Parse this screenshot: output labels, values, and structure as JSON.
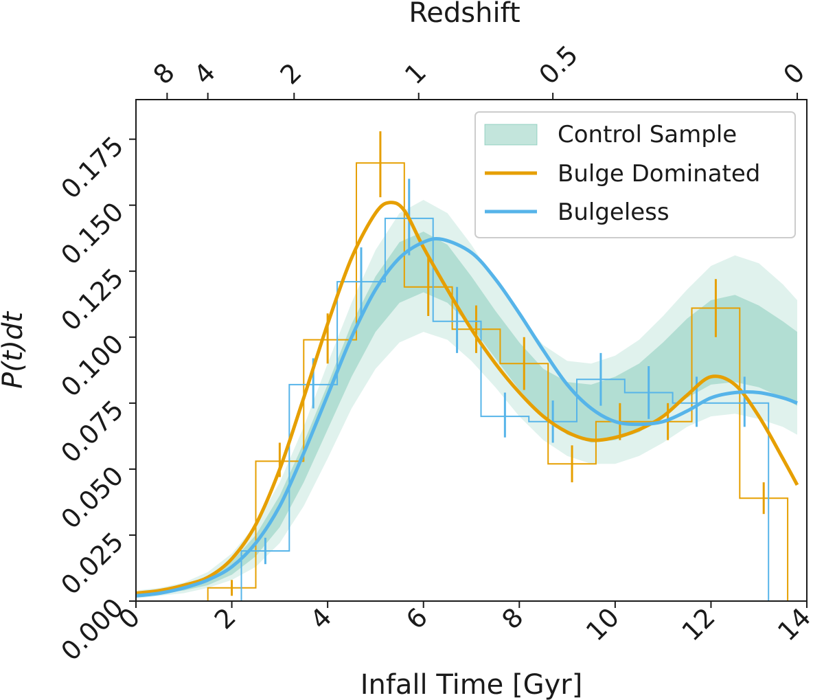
{
  "chart_data": {
    "type": "line",
    "xlabel": "Infall Time [Gyr]",
    "ylabel": "P(t)dt",
    "top_xlabel": "Redshift",
    "xlim": [
      0,
      14
    ],
    "ylim": [
      0,
      0.19
    ],
    "xticks": [
      0,
      2,
      4,
      6,
      8,
      10,
      12,
      14
    ],
    "xtick_labels": [
      "0",
      "2",
      "4",
      "6",
      "8",
      "10",
      "12",
      "14"
    ],
    "yticks": [
      0,
      0.025,
      0.05,
      0.075,
      0.1,
      0.125,
      0.15,
      0.175
    ],
    "ytick_labels": [
      "0.000",
      "0.025",
      "0.050",
      "0.075",
      "0.100",
      "0.125",
      "0.150",
      "0.175"
    ],
    "top_ticks": [
      {
        "label": "8",
        "t": 0.65
      },
      {
        "label": "4",
        "t": 1.5
      },
      {
        "label": "2",
        "t": 3.3
      },
      {
        "label": "1",
        "t": 5.9
      },
      {
        "label": "0.5",
        "t": 8.7
      },
      {
        "label": "0",
        "t": 13.8
      }
    ],
    "legend_position": "upper right",
    "colors": {
      "control": "#52b59a",
      "bulge": "#e69f00",
      "bulgeless": "#56b4e9"
    },
    "series": [
      {
        "name": "Control Sample",
        "kind": "band",
        "x": [
          0,
          0.5,
          1,
          1.5,
          2,
          2.5,
          3,
          3.5,
          4,
          4.5,
          5,
          5.5,
          6,
          6.5,
          7,
          7.5,
          8,
          8.5,
          9,
          9.5,
          10,
          10.5,
          11,
          11.5,
          12,
          12.5,
          13,
          13.5,
          13.8
        ],
        "inner_upper": [
          0.003,
          0.004,
          0.005,
          0.009,
          0.015,
          0.025,
          0.04,
          0.06,
          0.082,
          0.105,
          0.123,
          0.136,
          0.14,
          0.135,
          0.123,
          0.11,
          0.098,
          0.088,
          0.083,
          0.082,
          0.085,
          0.09,
          0.098,
          0.107,
          0.114,
          0.116,
          0.112,
          0.106,
          0.102
        ],
        "inner_lower": [
          0.002,
          0.003,
          0.004,
          0.006,
          0.01,
          0.017,
          0.028,
          0.045,
          0.065,
          0.085,
          0.102,
          0.113,
          0.117,
          0.113,
          0.104,
          0.092,
          0.08,
          0.07,
          0.063,
          0.06,
          0.061,
          0.064,
          0.07,
          0.077,
          0.082,
          0.083,
          0.081,
          0.077,
          0.074
        ],
        "outer_upper": [
          0.004,
          0.005,
          0.007,
          0.011,
          0.018,
          0.029,
          0.045,
          0.066,
          0.09,
          0.113,
          0.133,
          0.147,
          0.152,
          0.147,
          0.135,
          0.121,
          0.108,
          0.097,
          0.091,
          0.09,
          0.093,
          0.099,
          0.108,
          0.118,
          0.127,
          0.131,
          0.128,
          0.12,
          0.114
        ],
        "outer_lower": [
          0.001,
          0.002,
          0.003,
          0.005,
          0.008,
          0.013,
          0.022,
          0.036,
          0.054,
          0.073,
          0.088,
          0.098,
          0.102,
          0.099,
          0.091,
          0.081,
          0.07,
          0.061,
          0.055,
          0.052,
          0.052,
          0.055,
          0.06,
          0.066,
          0.07,
          0.071,
          0.069,
          0.066,
          0.063
        ]
      },
      {
        "name": "Bulge Dominated",
        "kind": "line",
        "x": [
          0,
          0.5,
          1,
          1.5,
          2,
          2.5,
          3,
          3.5,
          4,
          4.5,
          5,
          5.3,
          5.6,
          6,
          6.5,
          7,
          7.5,
          8,
          8.5,
          9,
          9.5,
          10,
          10.5,
          11,
          11.5,
          12,
          12.5,
          13,
          13.5,
          13.8
        ],
        "y": [
          0.003,
          0.004,
          0.006,
          0.009,
          0.016,
          0.029,
          0.05,
          0.077,
          0.105,
          0.13,
          0.147,
          0.151,
          0.148,
          0.134,
          0.118,
          0.103,
          0.09,
          0.079,
          0.07,
          0.064,
          0.061,
          0.062,
          0.065,
          0.07,
          0.078,
          0.085,
          0.082,
          0.07,
          0.054,
          0.044
        ]
      },
      {
        "name": "Bulgeless",
        "kind": "line",
        "x": [
          0,
          0.5,
          1,
          1.5,
          2,
          2.5,
          3,
          3.5,
          4,
          4.5,
          5,
          5.5,
          6,
          6.4,
          7,
          7.5,
          8,
          8.5,
          9,
          9.5,
          10,
          10.5,
          11,
          11.5,
          12,
          12.5,
          13,
          13.5,
          13.8
        ],
        "y": [
          0.002,
          0.003,
          0.005,
          0.008,
          0.013,
          0.022,
          0.036,
          0.056,
          0.078,
          0.1,
          0.118,
          0.13,
          0.136,
          0.137,
          0.132,
          0.122,
          0.109,
          0.095,
          0.082,
          0.073,
          0.068,
          0.067,
          0.068,
          0.072,
          0.077,
          0.079,
          0.079,
          0.077,
          0.075
        ]
      },
      {
        "name": "Bulge Dominated histogram",
        "kind": "step",
        "edges": [
          1.5,
          2.5,
          3.5,
          4.6,
          5.6,
          6.6,
          7.6,
          8.6,
          9.6,
          10.6,
          11.6,
          12.6,
          13.6
        ],
        "values": [
          0.005,
          0.053,
          0.099,
          0.166,
          0.119,
          0.103,
          0.09,
          0.052,
          0.068,
          0.068,
          0.111,
          0.039
        ],
        "err_x": [
          2.0,
          3.0,
          4.0,
          5.1,
          6.1,
          7.1,
          8.1,
          9.1,
          10.1,
          11.1,
          12.1,
          13.1
        ],
        "err_lo": [
          0.002,
          0.047,
          0.09,
          0.153,
          0.108,
          0.094,
          0.08,
          0.045,
          0.061,
          0.061,
          0.1,
          0.033
        ],
        "err_hi": [
          0.008,
          0.06,
          0.109,
          0.178,
          0.13,
          0.112,
          0.1,
          0.059,
          0.075,
          0.075,
          0.122,
          0.045
        ]
      },
      {
        "name": "Bulgeless histogram",
        "kind": "step",
        "edges": [
          2.2,
          3.2,
          4.2,
          5.2,
          6.2,
          7.2,
          8.2,
          9.2,
          10.2,
          11.2,
          12.2,
          13.2
        ],
        "values": [
          0.019,
          0.082,
          0.121,
          0.145,
          0.106,
          0.07,
          0.068,
          0.084,
          0.079,
          0.075,
          0.075
        ],
        "err_x": [
          2.7,
          3.7,
          4.7,
          5.7,
          6.7,
          7.7,
          8.7,
          9.7,
          10.7,
          11.7,
          12.7
        ],
        "err_lo": [
          0.014,
          0.073,
          0.108,
          0.131,
          0.094,
          0.062,
          0.06,
          0.074,
          0.069,
          0.066,
          0.066
        ],
        "err_hi": [
          0.024,
          0.092,
          0.134,
          0.16,
          0.119,
          0.079,
          0.076,
          0.094,
          0.089,
          0.085,
          0.085
        ]
      }
    ]
  }
}
